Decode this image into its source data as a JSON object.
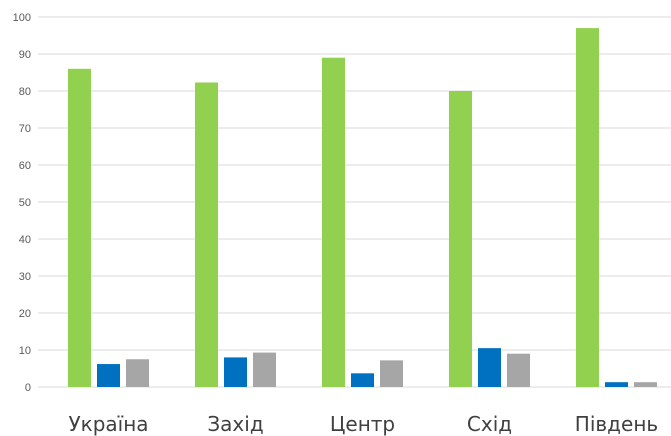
{
  "chart_data": {
    "type": "bar",
    "categories": [
      "Україна",
      "Захід",
      "Центр",
      "Схід",
      "Південь"
    ],
    "series": [
      {
        "color": "#92d050",
        "values": [
          86,
          82.3,
          89,
          80,
          97
        ]
      },
      {
        "color": "#0070c0",
        "values": [
          6.2,
          8,
          3.7,
          10.5,
          1.3
        ]
      },
      {
        "color": "#a6a6a6",
        "values": [
          7.5,
          9.3,
          7.2,
          9,
          1.3
        ]
      }
    ],
    "y_ticks": [
      "0",
      "10",
      "20",
      "30",
      "40",
      "50",
      "60",
      "70",
      "80",
      "90",
      "100"
    ],
    "ylim": [
      0,
      100
    ],
    "grid": true,
    "legend": "none",
    "title": "",
    "xlabel": "",
    "ylabel": ""
  }
}
